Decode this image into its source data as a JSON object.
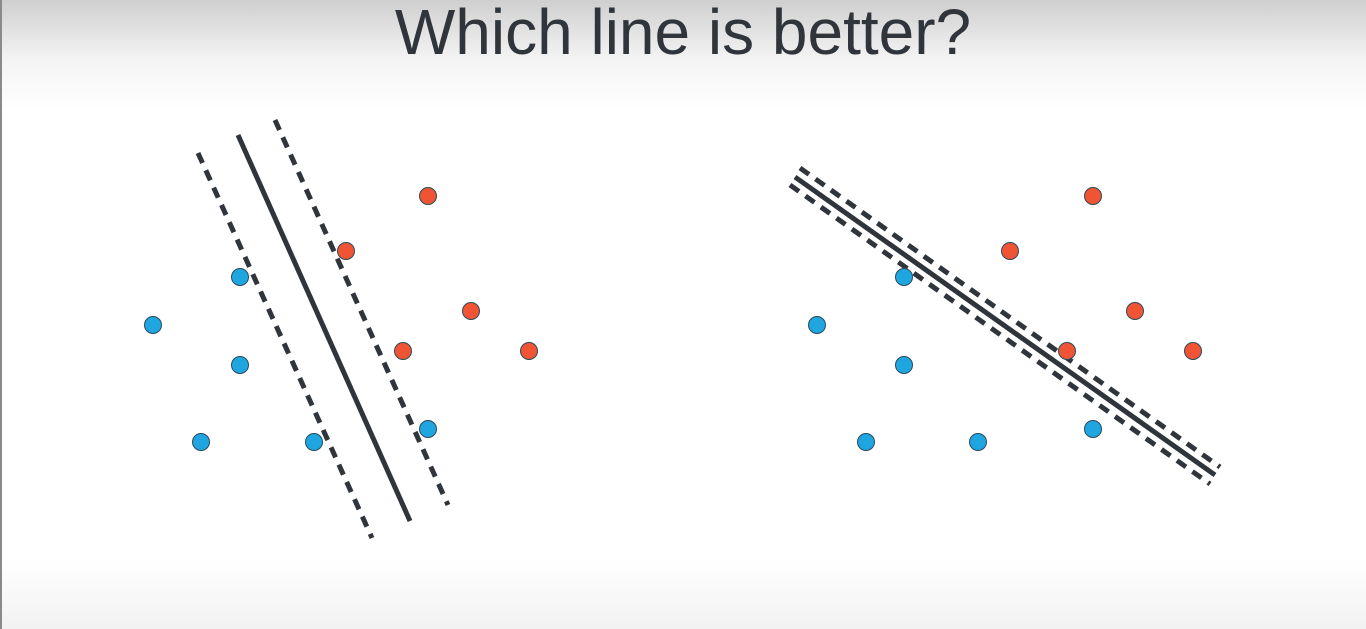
{
  "title": "Which line is better?",
  "colors": {
    "blue_point": "#1fa5e0",
    "red_point": "#ef5535",
    "line": "#2f353b",
    "point_stroke": "#2a4a5a"
  },
  "panels": [
    {
      "name": "left-panel",
      "blue_points": [
        [
          153,
          325
        ],
        [
          240,
          277
        ],
        [
          240,
          365
        ],
        [
          201,
          442
        ],
        [
          314,
          442
        ],
        [
          428,
          429
        ]
      ],
      "red_points": [
        [
          428,
          196
        ],
        [
          346,
          251
        ],
        [
          471,
          311
        ],
        [
          403,
          351
        ],
        [
          529,
          351
        ]
      ],
      "solid_line": [
        [
          238,
          135
        ],
        [
          410,
          521
        ]
      ],
      "dashed_lines": [
        [
          [
            198,
            153
          ],
          [
            372,
            538
          ]
        ],
        [
          [
            275,
            120
          ],
          [
            448,
            505
          ]
        ]
      ]
    },
    {
      "name": "right-panel",
      "blue_points": [
        [
          817,
          325
        ],
        [
          904,
          277
        ],
        [
          904,
          365
        ],
        [
          866,
          442
        ],
        [
          978,
          442
        ],
        [
          1093,
          429
        ]
      ],
      "red_points": [
        [
          1093,
          196
        ],
        [
          1010,
          251
        ],
        [
          1135,
          311
        ],
        [
          1067,
          351
        ],
        [
          1193,
          351
        ]
      ],
      "solid_line": [
        [
          795,
          177
        ],
        [
          1215,
          475
        ]
      ],
      "dashed_lines": [
        [
          [
            790,
            185
          ],
          [
            1210,
            484
          ]
        ],
        [
          [
            800,
            168
          ],
          [
            1220,
            467
          ]
        ]
      ]
    }
  ]
}
